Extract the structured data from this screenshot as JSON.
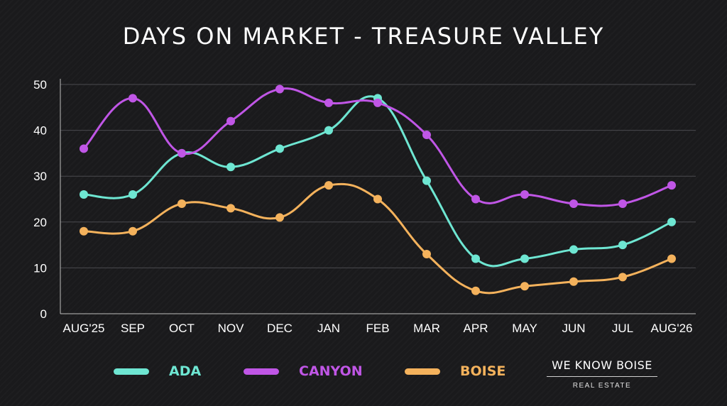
{
  "chart_data": {
    "type": "line",
    "title": "DAYS ON MARKET - TREASURE VALLEY",
    "categories": [
      "AUG'25",
      "SEP",
      "OCT",
      "NOV",
      "DEC",
      "JAN",
      "FEB",
      "MAR",
      "APR",
      "MAY",
      "JUN",
      "JUL",
      "AUG'26"
    ],
    "ylim": [
      0,
      50
    ],
    "yticks": [
      "0",
      "10",
      "20",
      "30",
      "40",
      "50"
    ],
    "grid": true,
    "legend_position": "bottom",
    "series": [
      {
        "name": "ADA",
        "color": "#6ee6d2",
        "values": [
          26,
          26,
          35,
          32,
          36,
          40,
          47,
          29,
          12,
          12,
          14,
          15,
          20
        ]
      },
      {
        "name": "CANYON",
        "color": "#c056e6",
        "values": [
          36,
          47,
          35,
          42,
          49,
          46,
          46,
          39,
          25,
          26,
          24,
          24,
          28
        ]
      },
      {
        "name": "BOISE",
        "color": "#f4b25c",
        "values": [
          18,
          18,
          24,
          23,
          21,
          28,
          25,
          13,
          5,
          6,
          7,
          8,
          12
        ]
      }
    ]
  },
  "branding": {
    "name": "WE KNOW BOISE",
    "subtitle": "REAL ESTATE"
  }
}
